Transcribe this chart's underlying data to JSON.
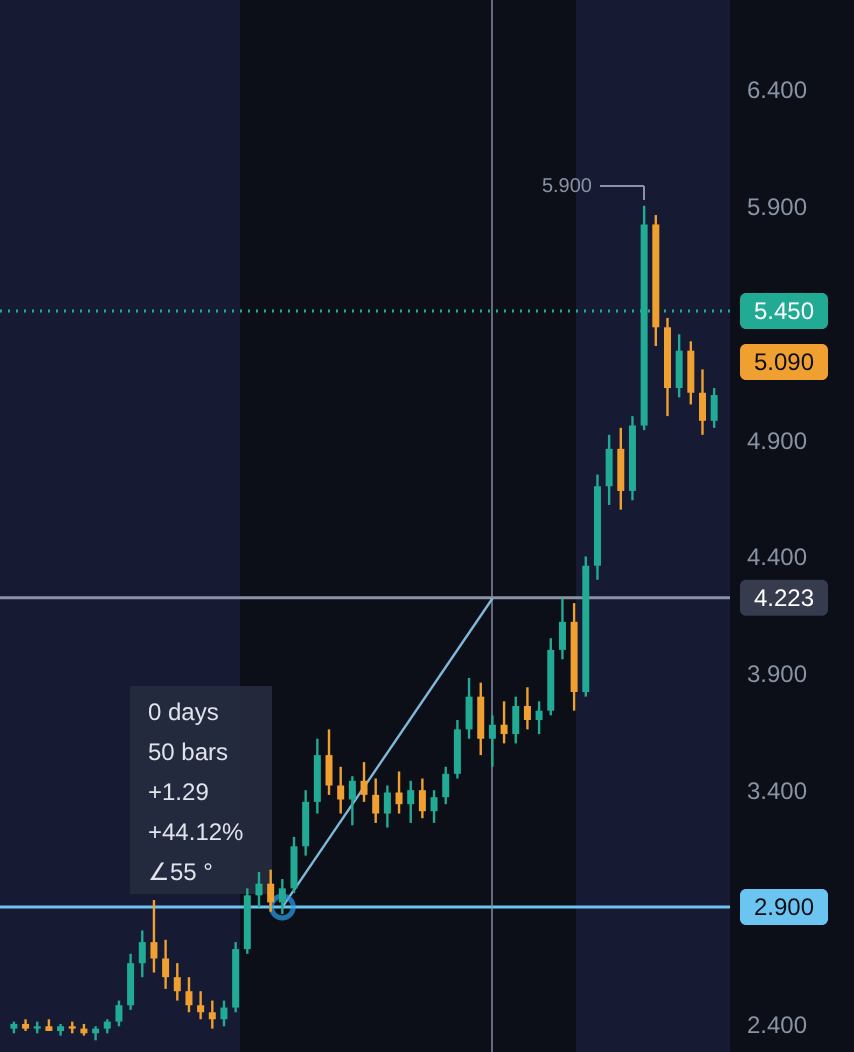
{
  "chart_data": {
    "type": "candlestick",
    "categories": [
      null,
      null,
      null,
      null,
      null,
      null,
      null,
      null,
      null,
      null,
      null,
      null,
      null,
      null,
      null,
      null,
      null,
      null,
      null,
      null,
      null,
      null,
      null,
      null,
      null,
      null,
      null,
      null,
      null,
      null,
      null,
      null,
      null,
      null,
      null,
      null,
      null,
      null,
      null,
      null,
      null,
      null,
      null,
      null,
      null,
      null,
      null,
      null,
      null,
      null,
      null,
      null,
      null,
      null,
      null,
      null,
      null,
      null,
      null,
      null,
      null
    ],
    "ohlc": [
      [
        2.38,
        2.41,
        2.36,
        2.4
      ],
      [
        2.4,
        2.42,
        2.37,
        2.38
      ],
      [
        2.38,
        2.41,
        2.36,
        2.39
      ],
      [
        2.39,
        2.42,
        2.37,
        2.37
      ],
      [
        2.37,
        2.4,
        2.35,
        2.39
      ],
      [
        2.39,
        2.41,
        2.36,
        2.38
      ],
      [
        2.38,
        2.4,
        2.35,
        2.36
      ],
      [
        2.36,
        2.39,
        2.33,
        2.38
      ],
      [
        2.38,
        2.42,
        2.36,
        2.41
      ],
      [
        2.41,
        2.5,
        2.39,
        2.48
      ],
      [
        2.48,
        2.7,
        2.46,
        2.66
      ],
      [
        2.66,
        2.8,
        2.6,
        2.75
      ],
      [
        2.75,
        2.93,
        2.62,
        2.68
      ],
      [
        2.68,
        2.76,
        2.55,
        2.6
      ],
      [
        2.6,
        2.66,
        2.5,
        2.54
      ],
      [
        2.54,
        2.6,
        2.45,
        2.48
      ],
      [
        2.48,
        2.54,
        2.42,
        2.45
      ],
      [
        2.45,
        2.5,
        2.38,
        2.42
      ],
      [
        2.42,
        2.5,
        2.39,
        2.47
      ],
      [
        2.47,
        2.75,
        2.45,
        2.72
      ],
      [
        2.72,
        2.98,
        2.7,
        2.95
      ],
      [
        2.95,
        3.05,
        2.9,
        3.0
      ],
      [
        3.0,
        3.06,
        2.88,
        2.92
      ],
      [
        2.92,
        3.02,
        2.87,
        2.98
      ],
      [
        2.98,
        3.2,
        2.96,
        3.16
      ],
      [
        3.16,
        3.4,
        3.12,
        3.35
      ],
      [
        3.35,
        3.62,
        3.3,
        3.55
      ],
      [
        3.55,
        3.66,
        3.38,
        3.42
      ],
      [
        3.42,
        3.5,
        3.3,
        3.36
      ],
      [
        3.36,
        3.46,
        3.25,
        3.44
      ],
      [
        3.44,
        3.52,
        3.35,
        3.38
      ],
      [
        3.38,
        3.45,
        3.26,
        3.3
      ],
      [
        3.3,
        3.42,
        3.24,
        3.39
      ],
      [
        3.39,
        3.48,
        3.3,
        3.34
      ],
      [
        3.34,
        3.44,
        3.26,
        3.4
      ],
      [
        3.4,
        3.45,
        3.28,
        3.31
      ],
      [
        3.31,
        3.4,
        3.26,
        3.37
      ],
      [
        3.37,
        3.5,
        3.34,
        3.47
      ],
      [
        3.47,
        3.7,
        3.45,
        3.66
      ],
      [
        3.66,
        3.88,
        3.62,
        3.8
      ],
      [
        3.8,
        3.86,
        3.55,
        3.62
      ],
      [
        3.62,
        3.72,
        3.5,
        3.68
      ],
      [
        3.68,
        3.78,
        3.6,
        3.64
      ],
      [
        3.64,
        3.8,
        3.6,
        3.76
      ],
      [
        3.76,
        3.84,
        3.66,
        3.7
      ],
      [
        3.7,
        3.78,
        3.64,
        3.74
      ],
      [
        3.74,
        4.05,
        3.72,
        4.0
      ],
      [
        4.0,
        4.22,
        3.96,
        4.12
      ],
      [
        4.12,
        4.2,
        3.74,
        3.82
      ],
      [
        3.82,
        4.4,
        3.8,
        4.36
      ],
      [
        4.36,
        4.75,
        4.3,
        4.7
      ],
      [
        4.7,
        4.92,
        4.62,
        4.86
      ],
      [
        4.86,
        4.95,
        4.6,
        4.68
      ],
      [
        4.68,
        5.0,
        4.64,
        4.96
      ],
      [
        4.96,
        5.9,
        4.94,
        5.82
      ],
      [
        5.82,
        5.86,
        5.3,
        5.38
      ],
      [
        5.38,
        5.42,
        5.0,
        5.12
      ],
      [
        5.12,
        5.35,
        5.08,
        5.28
      ],
      [
        5.28,
        5.32,
        5.05,
        5.1
      ],
      [
        5.1,
        5.2,
        4.92,
        4.98
      ],
      [
        4.98,
        5.12,
        4.95,
        5.09
      ]
    ],
    "colors": [
      "#22ab94",
      "#f0a030",
      "#22ab94",
      "#f0a030",
      "#22ab94",
      "#f0a030",
      "#f0a030",
      "#22ab94",
      "#22ab94",
      "#22ab94",
      "#22ab94",
      "#22ab94",
      "#f0a030",
      "#f0a030",
      "#f0a030",
      "#f0a030",
      "#f0a030",
      "#f0a030",
      "#22ab94",
      "#22ab94",
      "#22ab94",
      "#22ab94",
      "#f0a030",
      "#22ab94",
      "#22ab94",
      "#22ab94",
      "#22ab94",
      "#f0a030",
      "#f0a030",
      "#22ab94",
      "#f0a030",
      "#f0a030",
      "#22ab94",
      "#f0a030",
      "#22ab94",
      "#f0a030",
      "#22ab94",
      "#22ab94",
      "#22ab94",
      "#22ab94",
      "#f0a030",
      "#22ab94",
      "#f0a030",
      "#22ab94",
      "#f0a030",
      "#22ab94",
      "#22ab94",
      "#22ab94",
      "#f0a030",
      "#22ab94",
      "#22ab94",
      "#22ab94",
      "#f0a030",
      "#22ab94",
      "#22ab94",
      "#f0a030",
      "#f0a030",
      "#22ab94",
      "#f0a030",
      "#f0a030",
      "#22ab94"
    ],
    "series": [
      {
        "type": "line",
        "color": "#7fb8d8",
        "values": [
          null,
          null,
          null,
          null,
          null,
          null,
          null,
          null,
          null,
          null,
          null,
          null,
          null,
          null,
          null,
          null,
          null,
          null,
          null,
          null,
          null,
          null,
          null,
          2.9,
          null,
          null,
          null,
          null,
          null,
          null,
          null,
          null,
          null,
          null,
          null,
          null,
          null,
          null,
          null,
          null,
          null,
          4.22,
          null,
          null,
          null,
          null,
          null,
          null,
          null,
          null,
          null,
          null,
          null,
          null,
          null,
          null,
          null,
          null,
          null,
          null,
          null
        ]
      }
    ],
    "ylim": [
      2.28,
      6.78
    ],
    "yticks": [
      {
        "value": 2.4,
        "label": "2.400"
      },
      {
        "value": 3.4,
        "label": "3.400"
      },
      {
        "value": 3.9,
        "label": "3.900"
      },
      {
        "value": 4.4,
        "label": "4.400"
      },
      {
        "value": 4.9,
        "label": "4.900"
      },
      {
        "value": 5.9,
        "label": "5.900"
      },
      {
        "value": 6.4,
        "label": "6.400"
      }
    ],
    "ref_lines": [
      {
        "axis": "y",
        "value": 5.45,
        "label": "5.450",
        "color": "#22ab94",
        "line_style": "dotted"
      },
      {
        "axis": "y",
        "value": 2.9,
        "label": "2.900",
        "color": "#6cc4f0",
        "line_style": "solid"
      },
      {
        "axis": "y",
        "value": 4.223,
        "label": "4.223",
        "color": "#8a93a6",
        "line_style": "solid"
      }
    ],
    "annotations": [
      "0 days",
      "50 bars",
      "+1.29",
      "+44.12%",
      "∠55 °",
      "5.900",
      "5.090"
    ],
    "grid": false
  }
}
